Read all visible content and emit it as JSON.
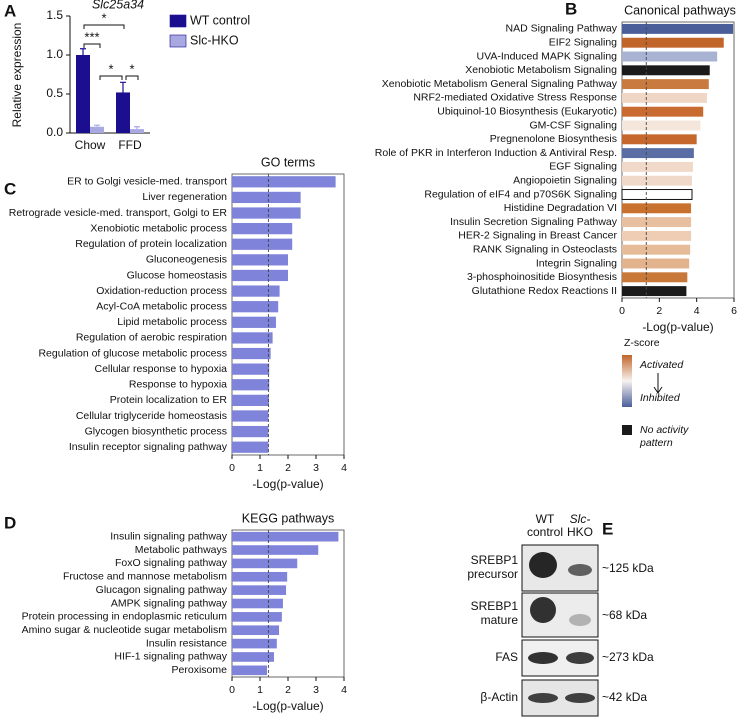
{
  "chart_data": [
    {
      "type": "bar",
      "panel": "A",
      "title": "Slc25a34",
      "ylabel": "Relative expression",
      "categories": [
        "Chow",
        "FFD"
      ],
      "series": [
        {
          "name": "WT control",
          "color": "#1c0f8f",
          "values": [
            1.0,
            0.52
          ],
          "errors": [
            0.08,
            0.13
          ]
        },
        {
          "name": "Slc-HKO",
          "color": "#a9a9e2",
          "values": [
            0.08,
            0.05
          ],
          "errors": [
            0.02,
            0.03
          ]
        }
      ],
      "ylim": [
        0,
        1.5
      ],
      "yticks": [
        {
          "value": 0,
          "label": "0.0"
        },
        0.5,
        {
          "value": 1,
          "label": "1.0"
        },
        1.5
      ],
      "annotations": [
        "*",
        "***",
        "*",
        "*"
      ]
    },
    {
      "type": "barh",
      "panel": "B",
      "title": "Canonical pathways",
      "xlabel": "-Log(p-value)",
      "categories": [
        "NAD Signaling Pathway",
        "EIF2 Signaling",
        "UVA-Induced MAPK Signaling",
        "Xenobiotic Metabolism Signaling",
        "Xenobiotic Metabolism General Signaling Pathway",
        "NRF2-mediated Oxidative Stress Response",
        "Ubiquinol-10 Biosynthesis (Eukaryotic)",
        "GM-CSF Signaling",
        "Pregnenolone Biosynthesis",
        "Role of PKR in Interferon Induction & Antiviral Resp.",
        "EGF Signaling",
        "Angiopoietin Signaling",
        "Regulation of eIF4 and p70S6K Signaling",
        "Histidine Degradation VI",
        "Insulin Secretion Signaling Pathway",
        "HER-2 Signaling in Breast Cancer",
        "RANK Signaling in Osteoclasts",
        "Integrin Signaling",
        "3-phosphoinositide Biosynthesis",
        "Glutathione Redox Reactions II"
      ],
      "values": [
        5.95,
        5.45,
        5.1,
        4.7,
        4.65,
        4.55,
        4.35,
        4.2,
        4.0,
        3.85,
        3.8,
        3.75,
        3.75,
        3.7,
        3.7,
        3.7,
        3.65,
        3.6,
        3.5,
        3.45
      ],
      "colors": [
        "#4a5f9a",
        "#c2652a",
        "#a8b3d4",
        "#1a1a1a",
        "#c97a3e",
        "#f0d6c4",
        "#c96a30",
        "#f5e6dc",
        "#c6672d",
        "#5a6ea5",
        "#f0d9c9",
        "#f0d9c9",
        "#ffffff",
        "#c9712f",
        "#e8c0a0",
        "#eecdb4",
        "#e6bb98",
        "#e3b38e",
        "#c87838",
        "#1a1a1a"
      ],
      "xlim": [
        0,
        6
      ],
      "xticks": [
        0,
        2,
        4,
        6
      ],
      "threshold": 1.3,
      "legend": {
        "title": "Z-score",
        "high": "Activated",
        "low": "Inhibited",
        "none": [
          "No activity",
          "pattern"
        ]
      }
    },
    {
      "type": "barh",
      "panel": "C",
      "title": "GO terms",
      "xlabel": "-Log(p-value)",
      "categories": [
        "ER to Golgi vesicle-med. transport",
        "Liver regeneration",
        "Retrograde vesicle-med. transport, Golgi to ER",
        "Xenobiotic metabolic process",
        "Regulation of protein localization",
        "Gluconeogenesis",
        "Glucose homeostasis",
        "Oxidation-reduction process",
        "Acyl-CoA metabolic process",
        "Lipid metabolic process",
        "Regulation of aerobic respiration",
        "Regulation of glucose metabolic process",
        "Cellular response to hypoxia",
        "Response to hypoxia",
        "Protein localization to ER",
        "Cellular triglyceride homeostasis",
        "Glycogen biosynthetic process",
        "Insulin receptor signaling pathway"
      ],
      "values": [
        3.7,
        2.45,
        2.45,
        2.15,
        2.15,
        2.0,
        2.0,
        1.7,
        1.65,
        1.57,
        1.45,
        1.38,
        1.33,
        1.33,
        1.32,
        1.3,
        1.3,
        1.3
      ],
      "color": "#7f83d9",
      "xlim": [
        0,
        4
      ],
      "xticks": [
        0,
        1,
        2,
        3,
        4
      ],
      "threshold": 1.3
    },
    {
      "type": "barh",
      "panel": "D",
      "title": "KEGG pathways",
      "xlabel": "-Log(p-value)",
      "categories": [
        "Insulin signaling pathway",
        "Metabolic pathways",
        "FoxO signaling pathway",
        "Fructose and mannose metabolism",
        "Glucagon signaling pathway",
        "AMPK signaling pathway",
        "Protein processing in endoplasmic reticulum",
        "Amino sugar & nucleotide sugar metabolism",
        "Insulin resistance",
        "HIF-1 signaling pathway",
        "Peroxisome"
      ],
      "values": [
        3.8,
        3.08,
        2.33,
        1.97,
        1.93,
        1.82,
        1.78,
        1.68,
        1.6,
        1.5,
        1.25
      ],
      "color": "#7f83d9",
      "xlim": [
        0,
        4
      ],
      "xticks": [
        0,
        1,
        2,
        3,
        4
      ],
      "threshold": 1.3
    }
  ],
  "blot": {
    "panel": "E",
    "lanes": [
      [
        "WT",
        "control"
      ],
      [
        "Slc-",
        "HKO"
      ]
    ],
    "rows": [
      {
        "label": [
          "SREBP1",
          "precursor"
        ],
        "size": "~125 kDa"
      },
      {
        "label": [
          "SREBP1",
          "mature"
        ],
        "size": "~68 kDa"
      },
      {
        "label": [
          "FAS"
        ],
        "size": "~273 kDa"
      },
      {
        "label": [
          "β-Actin"
        ],
        "size": "~42 kDa"
      }
    ]
  }
}
